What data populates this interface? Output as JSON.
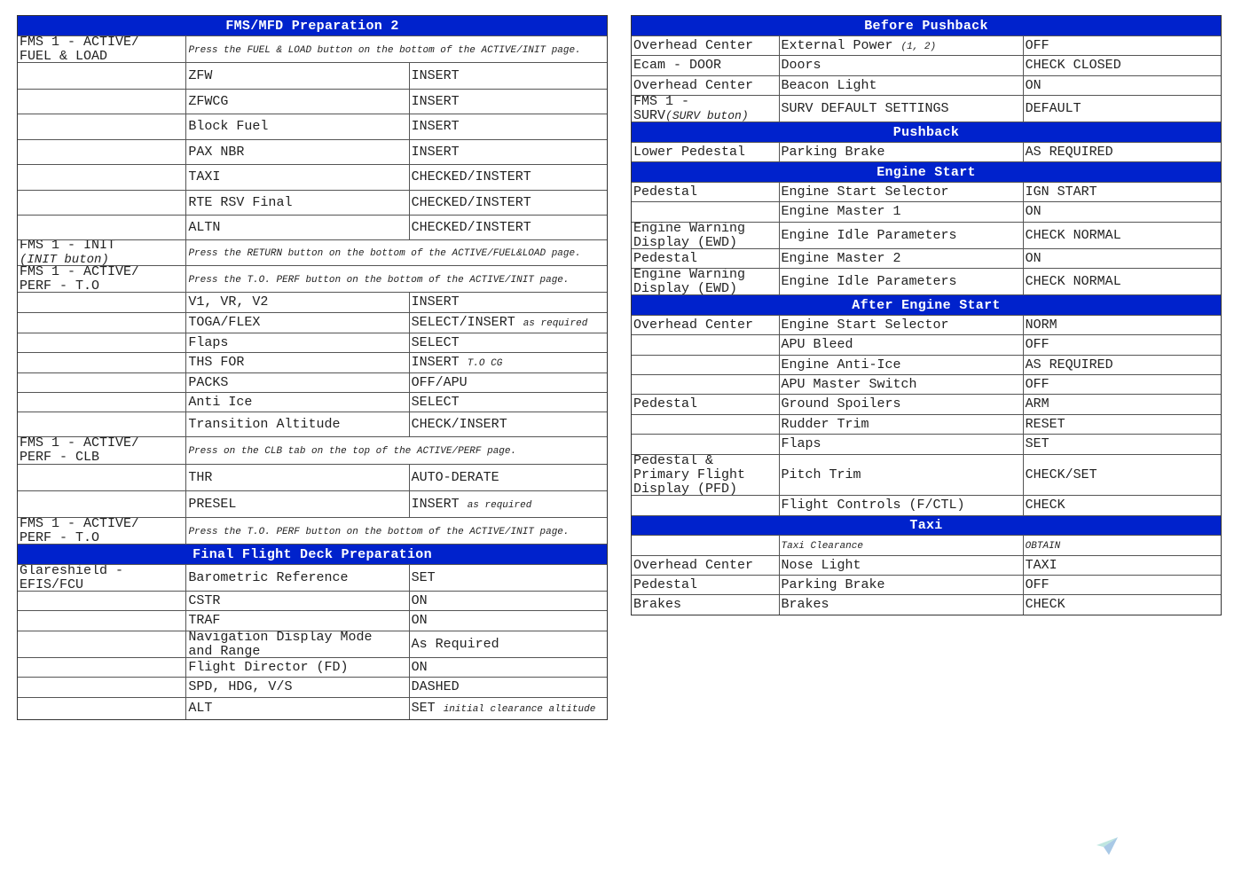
{
  "left": {
    "sections": [
      {
        "title": "FMS/MFD Preparation 2",
        "rows": [
          {
            "span": true,
            "c": [
              {
                "t": "FMS 1 - ACTIVE/\nFUEL & LOAD"
              },
              {
                "i": "Press the FUEL & LOAD button on the bottom of the ACTIVE/INIT page."
              }
            ]
          },
          {
            "c": [
              {
                "t": ""
              },
              {
                "t": "ZFW"
              },
              {
                "t": "INSERT"
              }
            ]
          },
          {
            "c": [
              {
                "t": ""
              },
              {
                "t": "ZFWCG"
              },
              {
                "t": "INSERT"
              }
            ]
          },
          {
            "c": [
              {
                "t": ""
              },
              {
                "t": "Block Fuel"
              },
              {
                "t": "INSERT"
              }
            ]
          },
          {
            "c": [
              {
                "t": ""
              },
              {
                "t": "PAX NBR"
              },
              {
                "t": "INSERT"
              }
            ]
          },
          {
            "c": [
              {
                "t": ""
              },
              {
                "t": "TAXI"
              },
              {
                "t": "CHECKED/INSTERT"
              }
            ]
          },
          {
            "c": [
              {
                "t": ""
              },
              {
                "t": "RTE RSV Final"
              },
              {
                "t": "CHECKED/INSTERT"
              }
            ]
          },
          {
            "c": [
              {
                "t": ""
              },
              {
                "t": "ALTN"
              },
              {
                "t": "CHECKED/INSTERT"
              }
            ]
          },
          {
            "span": true,
            "c": [
              {
                "t": "FMS 1 - INIT\n",
                "i2": "(INIT buton)"
              },
              {
                "i": "Press the RETURN button on the bottom of the ACTIVE/FUEL&LOAD page."
              }
            ]
          },
          {
            "span": true,
            "c": [
              {
                "t": "FMS 1 - ACTIVE/\nPERF - T.O"
              },
              {
                "i": "Press the T.O. PERF button on the bottom of the ACTIVE/INIT page."
              }
            ]
          },
          {
            "c": [
              {
                "t": ""
              },
              {
                "t": "V1, VR, V2"
              },
              {
                "t": "INSERT"
              }
            ]
          },
          {
            "c": [
              {
                "t": ""
              },
              {
                "t": "TOGA/FLEX"
              },
              {
                "t": "SELECT/INSERT ",
                "i": "as required"
              }
            ]
          },
          {
            "c": [
              {
                "t": ""
              },
              {
                "t": "Flaps"
              },
              {
                "t": "SELECT"
              }
            ]
          },
          {
            "c": [
              {
                "t": ""
              },
              {
                "t": "THS FOR"
              },
              {
                "t": "INSERT ",
                "i": "T.O CG"
              }
            ]
          },
          {
            "c": [
              {
                "t": ""
              },
              {
                "t": "PACKS"
              },
              {
                "t": "OFF/APU"
              }
            ]
          },
          {
            "c": [
              {
                "t": ""
              },
              {
                "t": "Anti Ice"
              },
              {
                "t": "SELECT"
              }
            ]
          },
          {
            "c": [
              {
                "t": ""
              },
              {
                "t": "Transition Altitude"
              },
              {
                "t": "CHECK/INSERT"
              }
            ]
          },
          {
            "span": true,
            "c": [
              {
                "t": "FMS 1 - ACTIVE/\nPERF - CLB"
              },
              {
                "i": "Press on the CLB tab on the top of the ACTIVE/PERF page."
              }
            ]
          },
          {
            "c": [
              {
                "t": ""
              },
              {
                "t": "THR"
              },
              {
                "t": "AUTO-DERATE"
              }
            ]
          },
          {
            "c": [
              {
                "t": ""
              },
              {
                "t": "PRESEL"
              },
              {
                "t": "INSERT ",
                "i": "as required"
              }
            ]
          },
          {
            "span": true,
            "c": [
              {
                "t": "FMS 1 - ACTIVE/\nPERF - T.O"
              },
              {
                "i": "Press the T.O. PERF button on the bottom of the ACTIVE/INIT page."
              }
            ]
          }
        ]
      },
      {
        "title": "Final Flight Deck Preparation",
        "rows": [
          {
            "c": [
              {
                "t": "Glareshield -\nEFIS/FCU"
              },
              {
                "t": "Barometric Reference"
              },
              {
                "t": "SET"
              }
            ]
          },
          {
            "c": [
              {
                "t": ""
              },
              {
                "t": "CSTR"
              },
              {
                "t": "ON"
              }
            ]
          },
          {
            "c": [
              {
                "t": ""
              },
              {
                "t": "TRAF"
              },
              {
                "t": "ON"
              }
            ]
          },
          {
            "c": [
              {
                "t": ""
              },
              {
                "t": "Navigation Display Mode\nand Range"
              },
              {
                "t": "As Required"
              }
            ]
          },
          {
            "c": [
              {
                "t": ""
              },
              {
                "t": "Flight Director (FD)"
              },
              {
                "t": "ON"
              }
            ]
          },
          {
            "c": [
              {
                "t": ""
              },
              {
                "t": "SPD, HDG, V/S"
              },
              {
                "t": "DASHED"
              }
            ]
          },
          {
            "c": [
              {
                "t": ""
              },
              {
                "t": "ALT"
              },
              {
                "t": "SET ",
                "i": "initial clearance altitude",
                "small": true
              }
            ]
          }
        ]
      }
    ]
  },
  "right": {
    "sections": [
      {
        "title": "Before Pushback",
        "rows": [
          {
            "c": [
              {
                "t": "Overhead Center"
              },
              {
                "t": "External Power ",
                "i": "(1, 2)"
              },
              {
                "t": "OFF"
              }
            ]
          },
          {
            "c": [
              {
                "t": "Ecam - DOOR"
              },
              {
                "t": "Doors"
              },
              {
                "t": "CHECK CLOSED"
              }
            ]
          },
          {
            "c": [
              {
                "t": "Overhead Center"
              },
              {
                "t": "Beacon Light"
              },
              {
                "t": "ON"
              }
            ]
          },
          {
            "c": [
              {
                "t": "FMS 1 -\nSURV",
                "i": "(SURV buton)"
              },
              {
                "t": "SURV DEFAULT SETTINGS"
              },
              {
                "t": "DEFAULT"
              }
            ]
          }
        ]
      },
      {
        "title": "Pushback",
        "rows": [
          {
            "c": [
              {
                "t": "Lower Pedestal"
              },
              {
                "t": "Parking Brake"
              },
              {
                "t": "AS REQUIRED"
              }
            ]
          }
        ]
      },
      {
        "title": "Engine Start",
        "rows": [
          {
            "c": [
              {
                "t": "Pedestal"
              },
              {
                "t": "Engine Start Selector"
              },
              {
                "t": "IGN START"
              }
            ]
          },
          {
            "c": [
              {
                "t": ""
              },
              {
                "t": "Engine Master 1"
              },
              {
                "t": "ON"
              }
            ]
          },
          {
            "c": [
              {
                "t": "Engine Warning\nDisplay (EWD)"
              },
              {
                "t": "Engine Idle Parameters"
              },
              {
                "t": "CHECK NORMAL"
              }
            ]
          },
          {
            "c": [
              {
                "t": "Pedestal"
              },
              {
                "t": "Engine Master 2"
              },
              {
                "t": "ON"
              }
            ]
          },
          {
            "c": [
              {
                "t": "Engine Warning\nDisplay (EWD)"
              },
              {
                "t": "Engine Idle Parameters"
              },
              {
                "t": "CHECK NORMAL"
              }
            ]
          }
        ]
      },
      {
        "title": "After Engine Start",
        "rows": [
          {
            "c": [
              {
                "t": "Overhead Center"
              },
              {
                "t": "Engine Start Selector"
              },
              {
                "t": "NORM"
              }
            ]
          },
          {
            "c": [
              {
                "t": ""
              },
              {
                "t": "APU Bleed"
              },
              {
                "t": "OFF"
              }
            ]
          },
          {
            "c": [
              {
                "t": ""
              },
              {
                "t": "Engine Anti-Ice"
              },
              {
                "t": "AS REQUIRED"
              }
            ]
          },
          {
            "c": [
              {
                "t": ""
              },
              {
                "t": "APU Master Switch"
              },
              {
                "t": "OFF"
              }
            ]
          },
          {
            "c": [
              {
                "t": "Pedestal"
              },
              {
                "t": "Ground Spoilers"
              },
              {
                "t": "ARM"
              }
            ]
          },
          {
            "c": [
              {
                "t": ""
              },
              {
                "t": "Rudder Trim"
              },
              {
                "t": "RESET"
              }
            ]
          },
          {
            "c": [
              {
                "t": ""
              },
              {
                "t": "Flaps"
              },
              {
                "t": "SET"
              }
            ]
          },
          {
            "c": [
              {
                "t": "Pedestal &\nPrimary Flight\nDisplay (PFD)"
              },
              {
                "t": "Pitch Trim"
              },
              {
                "t": "CHECK/SET"
              }
            ]
          },
          {
            "c": [
              {
                "t": ""
              },
              {
                "t": "Flight Controls (F/CTL)"
              },
              {
                "t": "CHECK"
              }
            ]
          }
        ]
      },
      {
        "title": "Taxi",
        "rows": [
          {
            "c": [
              {
                "t": ""
              },
              {
                "i": "Taxi Clearance"
              },
              {
                "i": "OBTAIN"
              }
            ]
          },
          {
            "c": [
              {
                "t": "Overhead Center"
              },
              {
                "t": "Nose Light"
              },
              {
                "t": "TAXI"
              }
            ]
          },
          {
            "c": [
              {
                "t": "Pedestal"
              },
              {
                "t": "Parking Brake"
              },
              {
                "t": "OFF"
              }
            ]
          },
          {
            "c": [
              {
                "t": "Brakes"
              },
              {
                "t": "Brakes"
              },
              {
                "t": "CHECK"
              }
            ]
          }
        ]
      }
    ]
  },
  "colors": {
    "header_bg": "#0022cc",
    "header_text": "#ffffff"
  },
  "watermark_icon": "paper-plane-icon"
}
